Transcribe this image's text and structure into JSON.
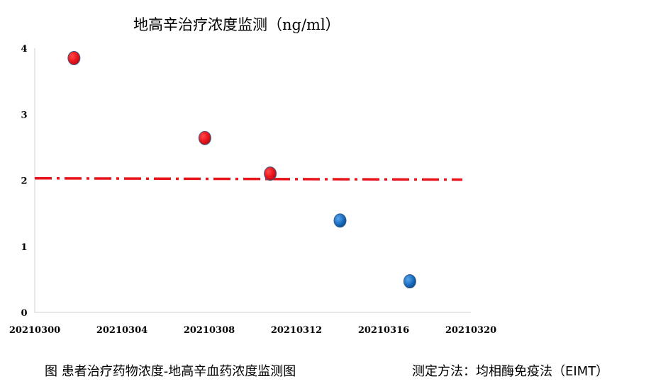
{
  "chart_data": {
    "type": "scatter",
    "title": "地高辛治疗浓度监测（ng/ml）",
    "xlabel": "",
    "ylabel": "",
    "x_ticks": [
      "20210300",
      "20210304",
      "20210308",
      "20210312",
      "20210316",
      "20210320"
    ],
    "y_ticks": [
      "0",
      "1",
      "2",
      "3",
      "4"
    ],
    "xlim": [
      0,
      20
    ],
    "ylim": [
      0,
      4
    ],
    "grid": false,
    "legend": "none",
    "reference_line": {
      "y_start": 2.03,
      "y_end": 2.01,
      "style": "dash-dot",
      "color": "#e8141c"
    },
    "points": [
      {
        "x": 1.8,
        "y": 3.85,
        "color": "#e8141c"
      },
      {
        "x": 7.8,
        "y": 2.64,
        "color": "#e8141c"
      },
      {
        "x": 10.8,
        "y": 2.1,
        "color": "#e8141c"
      },
      {
        "x": 14.0,
        "y": 1.39,
        "color": "#1b6fc2"
      },
      {
        "x": 17.2,
        "y": 0.47,
        "color": "#1b6fc2"
      }
    ],
    "colors": {
      "above_reference": "#e8141c",
      "below_reference": "#1b6fc2",
      "axis": "#d0d0d0"
    }
  },
  "footer": {
    "caption": "图 患者治疗药物浓度-地高辛血药浓度监测图",
    "method": "测定方法：均相酶免疫法（EIMT）"
  }
}
